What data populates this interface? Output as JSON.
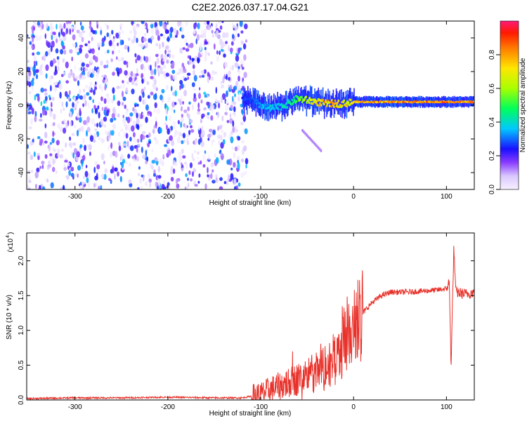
{
  "title": "C2E2.2026.037.17.04.G21",
  "chart_data": [
    {
      "type": "heatmap",
      "xlabel": "Height of straight line (km)",
      "ylabel": "Frequency (Hz)",
      "xlim": [
        -352,
        130
      ],
      "ylim": [
        -50,
        50
      ],
      "xticks": [
        -300,
        -200,
        -100,
        0,
        100
      ],
      "yticks": [
        -40,
        -20,
        0,
        20,
        40
      ],
      "colorbar": {
        "label": "Normalized spectral amplitude",
        "range": [
          0.0,
          1.0
        ],
        "ticks": [
          0.0,
          0.2,
          0.4,
          0.6,
          0.8
        ]
      },
      "ridge": {
        "description_free": true,
        "x": [
          -110,
          -100,
          -90,
          -80,
          -70,
          -60,
          -50,
          -40,
          -30,
          -20,
          -10,
          0,
          20,
          40,
          60,
          80,
          100,
          130
        ],
        "frequency": [
          3,
          0,
          -2,
          -1,
          1,
          4,
          3,
          2,
          1,
          1,
          1,
          2,
          2,
          2,
          2,
          2,
          2,
          2
        ],
        "amplitude": [
          0.3,
          0.35,
          0.4,
          0.4,
          0.45,
          0.55,
          0.7,
          0.75,
          0.8,
          0.8,
          0.75,
          0.8,
          0.85,
          0.9,
          0.9,
          0.85,
          0.9,
          0.85
        ]
      },
      "noise_region": {
        "x": [
          -352,
          -115
        ],
        "amplitude_max": 0.35
      },
      "tail": {
        "x": [
          -55,
          -35
        ],
        "frequency": [
          -15,
          -27
        ]
      }
    },
    {
      "type": "line",
      "xlabel": "Height of straight line (km)",
      "ylabel": "SNR (10 * v/v)",
      "scale_label": "(x10",
      "scale_exponent": "4",
      "xlim": [
        -352,
        130
      ],
      "ylim": [
        0.0,
        2.4
      ],
      "xticks": [
        -300,
        -200,
        -100,
        0,
        100
      ],
      "yticks": [
        0.0,
        0.5,
        1.0,
        1.5,
        2.0
      ],
      "ytick_labels": [
        "0.0",
        "0.5",
        "1.0",
        "1.5",
        "2.0"
      ],
      "series": [
        {
          "color": "#e8322b",
          "x": [
            -352,
            -300,
            -250,
            -200,
            -150,
            -120,
            -100,
            -90,
            -80,
            -70,
            -60,
            -50,
            -40,
            -30,
            -20,
            -10,
            0,
            10,
            20,
            30,
            40,
            50,
            60,
            70,
            80,
            90,
            100,
            103,
            105,
            108,
            110,
            120,
            130
          ],
          "y": [
            0.02,
            0.03,
            0.03,
            0.04,
            0.03,
            0.03,
            0.08,
            0.15,
            0.2,
            0.25,
            0.3,
            0.35,
            0.4,
            0.45,
            0.6,
            0.9,
            1.05,
            1.25,
            1.4,
            1.5,
            1.55,
            1.55,
            1.55,
            1.56,
            1.57,
            1.58,
            1.6,
            1.7,
            0.5,
            2.2,
            1.55,
            1.52,
            1.55
          ]
        }
      ]
    }
  ]
}
